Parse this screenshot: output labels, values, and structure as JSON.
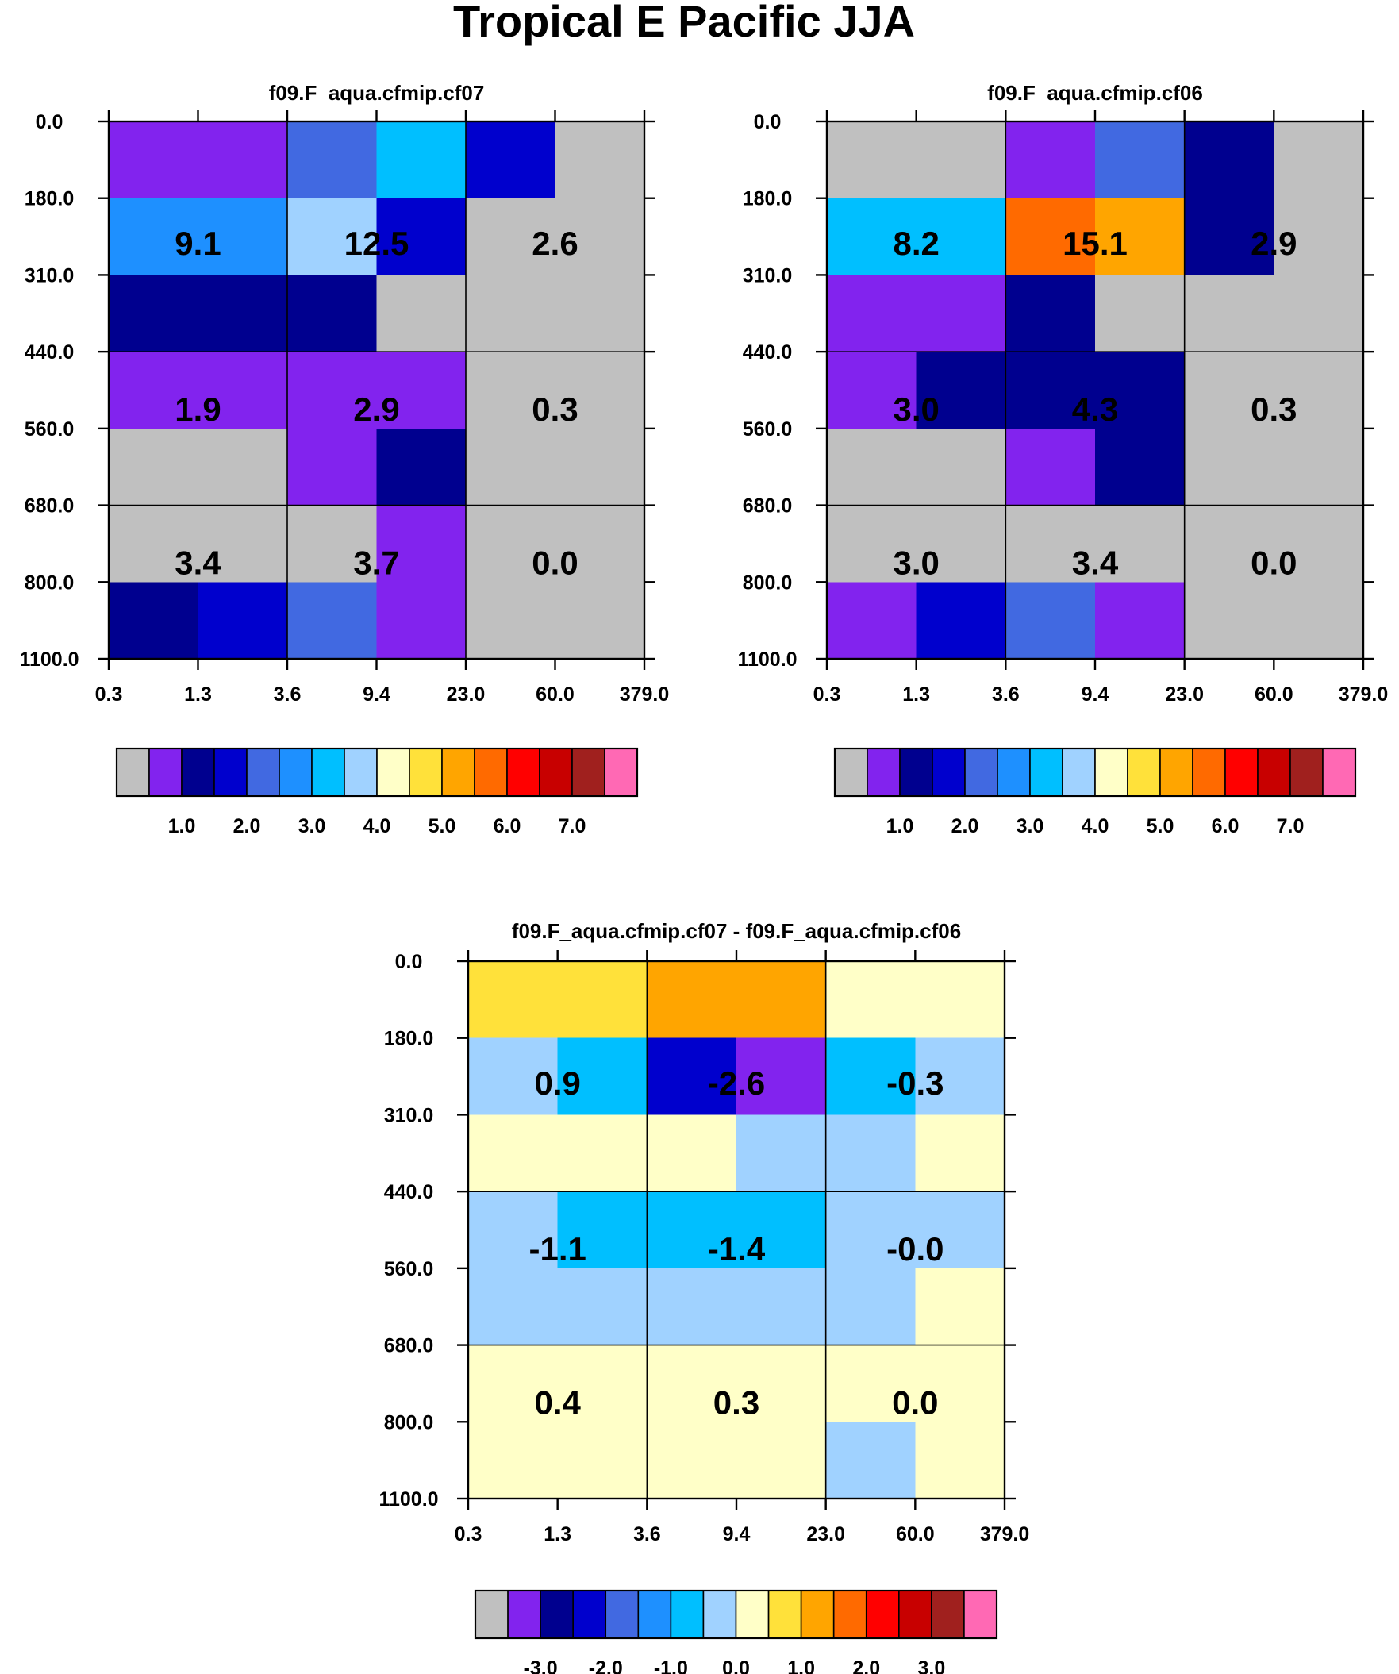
{
  "title": "Tropical E Pacific JJA",
  "colors": {
    "palette": [
      "#c0c0c0",
      "#8223ee",
      "#00008f",
      "#0000cd",
      "#4169e1",
      "#1e90ff",
      "#00bfff",
      "#a0d2ff",
      "#ffffc8",
      "#ffe13a",
      "#ffa500",
      "#ff6a00",
      "#ff0000",
      "#c80000",
      "#a0201e",
      "#ff69b4"
    ],
    "frame": "#000000",
    "background": "#ffffff"
  },
  "colorbar_main": {
    "labels": [
      "1.0",
      "2.0",
      "3.0",
      "4.0",
      "5.0",
      "6.0",
      "7.0"
    ]
  },
  "colorbar_diff": {
    "labels": [
      "-3.0",
      "-2.0",
      "-1.0",
      "0.0",
      "1.0",
      "2.0",
      "3.0"
    ]
  },
  "chart_data": [
    {
      "type": "heatmap",
      "title": "f09.F_aqua.cfmip.cf07",
      "x_tick_labels": [
        "0.3",
        "1.3",
        "3.6",
        "9.4",
        "23.0",
        "60.0",
        "379.0"
      ],
      "y_tick_labels": [
        "0.0",
        "180.0",
        "310.0",
        "440.0",
        "560.0",
        "680.0",
        "800.0",
        "1100.0"
      ],
      "colorbar": "main",
      "cell_color_index": [
        [
          1,
          1,
          4,
          6,
          3,
          0
        ],
        [
          5,
          5,
          7,
          3,
          0,
          0
        ],
        [
          2,
          2,
          2,
          0,
          0,
          0
        ],
        [
          1,
          1,
          1,
          1,
          0,
          0
        ],
        [
          0,
          0,
          1,
          2,
          0,
          0
        ],
        [
          0,
          0,
          0,
          1,
          0,
          0
        ],
        [
          2,
          3,
          4,
          1,
          0,
          0
        ]
      ],
      "block_values": [
        [
          "9.1",
          "12.5",
          "2.6"
        ],
        [
          "1.9",
          "2.9",
          "0.3"
        ],
        [
          "3.4",
          "3.7",
          "0.0"
        ]
      ]
    },
    {
      "type": "heatmap",
      "title": "f09.F_aqua.cfmip.cf06",
      "x_tick_labels": [
        "0.3",
        "1.3",
        "3.6",
        "9.4",
        "23.0",
        "60.0",
        "379.0"
      ],
      "y_tick_labels": [
        "0.0",
        "180.0",
        "310.0",
        "440.0",
        "560.0",
        "680.0",
        "800.0",
        "1100.0"
      ],
      "colorbar": "main",
      "cell_color_index": [
        [
          0,
          0,
          1,
          4,
          2,
          0
        ],
        [
          6,
          6,
          11,
          10,
          2,
          0
        ],
        [
          1,
          1,
          2,
          0,
          0,
          0
        ],
        [
          1,
          2,
          2,
          2,
          0,
          0
        ],
        [
          0,
          0,
          1,
          2,
          0,
          0
        ],
        [
          0,
          0,
          0,
          0,
          0,
          0
        ],
        [
          1,
          3,
          4,
          1,
          0,
          0
        ]
      ],
      "block_values": [
        [
          "8.2",
          "15.1",
          "2.9"
        ],
        [
          "3.0",
          "4.3",
          "0.3"
        ],
        [
          "3.0",
          "3.4",
          "0.0"
        ]
      ]
    },
    {
      "type": "heatmap",
      "title": "f09.F_aqua.cfmip.cf07 - f09.F_aqua.cfmip.cf06",
      "x_tick_labels": [
        "0.3",
        "1.3",
        "3.6",
        "9.4",
        "23.0",
        "60.0",
        "379.0"
      ],
      "y_tick_labels": [
        "0.0",
        "180.0",
        "310.0",
        "440.0",
        "560.0",
        "680.0",
        "800.0",
        "1100.0"
      ],
      "colorbar": "diff",
      "cell_color_index": [
        [
          9,
          9,
          10,
          10,
          8,
          8
        ],
        [
          7,
          6,
          3,
          1,
          6,
          7
        ],
        [
          8,
          8,
          8,
          7,
          7,
          8
        ],
        [
          7,
          6,
          6,
          6,
          7,
          7
        ],
        [
          7,
          7,
          7,
          7,
          7,
          8
        ],
        [
          8,
          8,
          8,
          8,
          8,
          8
        ],
        [
          8,
          8,
          8,
          8,
          7,
          8
        ]
      ],
      "block_values": [
        [
          "0.9",
          "-2.6",
          "-0.3"
        ],
        [
          "-1.1",
          "-1.4",
          "-0.0"
        ],
        [
          "0.4",
          "0.3",
          "0.0"
        ]
      ]
    }
  ]
}
